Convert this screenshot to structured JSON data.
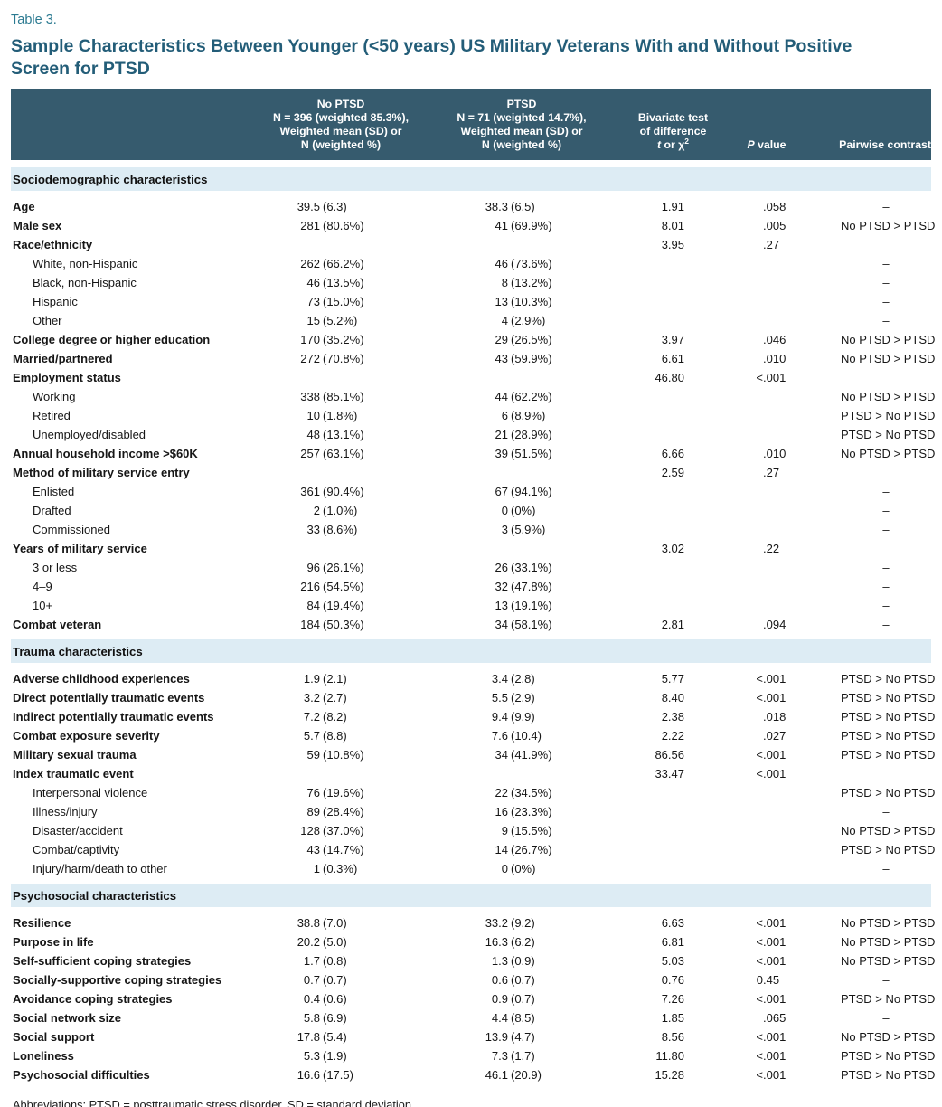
{
  "title": {
    "eyebrow": "Table 3.",
    "line1": "Sample Characteristics Between Younger (<50 years) US Military Veterans With and Without Positive",
    "line2": "Screen for PTSD"
  },
  "colors": {
    "header_bg": "#365b6e",
    "band_bg": "#ddecf4",
    "eyebrow_color": "#2b7a91",
    "heading_color": "#235d78",
    "bottom_rule": "#5d87a0"
  },
  "table": {
    "header": {
      "no_ptsd": [
        "No PTSD",
        "N = 396 (weighted 85.3%),",
        "Weighted mean (SD) or",
        "N (weighted %)"
      ],
      "ptsd": [
        "PTSD",
        "N = 71 (weighted 14.7%),",
        "Weighted mean (SD) or",
        "N (weighted %)"
      ],
      "test": {
        "line1": "Bivariate test",
        "line2": "of difference",
        "t": "t",
        "or": " or ",
        "chi": "χ",
        "sup": "2"
      },
      "p": {
        "italic": "P",
        "rest": " value"
      },
      "contrast": "Pairwise contrast"
    },
    "sections": [
      {
        "header": "Sociodemographic characteristics",
        "rows": [
          {
            "label": "Age",
            "indent": false,
            "no_ptsd": "39.5 (6.3)",
            "ptsd": "38.3 (6.5)",
            "test": "1.91",
            "p": ".058",
            "contrast": "–"
          },
          {
            "label": "Male sex",
            "indent": false,
            "no_ptsd": "281 (80.6%)",
            "ptsd": "41 (69.9%)",
            "test": "8.01",
            "p": ".005",
            "contrast": "No PTSD > PTSD"
          },
          {
            "label": "Race/ethnicity",
            "indent": false,
            "no_ptsd": "",
            "ptsd": "",
            "test": "3.95",
            "p": ".27",
            "contrast": ""
          },
          {
            "label": "White, non-Hispanic",
            "indent": true,
            "no_ptsd": "262 (66.2%)",
            "ptsd": "46 (73.6%)",
            "test": "",
            "p": "",
            "contrast": "–"
          },
          {
            "label": "Black, non-Hispanic",
            "indent": true,
            "no_ptsd": "46 (13.5%)",
            "ptsd": "8 (13.2%)",
            "test": "",
            "p": "",
            "contrast": "–"
          },
          {
            "label": "Hispanic",
            "indent": true,
            "no_ptsd": "73 (15.0%)",
            "ptsd": "13 (10.3%)",
            "test": "",
            "p": "",
            "contrast": "–"
          },
          {
            "label": "Other",
            "indent": true,
            "no_ptsd": "15 (5.2%)",
            "ptsd": "4 (2.9%)",
            "test": "",
            "p": "",
            "contrast": "–"
          },
          {
            "label": "College degree or higher education",
            "indent": false,
            "no_ptsd": "170 (35.2%)",
            "ptsd": "29 (26.5%)",
            "test": "3.97",
            "p": ".046",
            "contrast": "No PTSD > PTSD"
          },
          {
            "label": "Married/partnered",
            "indent": false,
            "no_ptsd": "272 (70.8%)",
            "ptsd": "43 (59.9%)",
            "test": "6.61",
            "p": ".010",
            "contrast": "No PTSD > PTSD"
          },
          {
            "label": "Employment status",
            "indent": false,
            "no_ptsd": "",
            "ptsd": "",
            "test": "46.80",
            "p": "<.001",
            "contrast": ""
          },
          {
            "label": "Working",
            "indent": true,
            "no_ptsd": "338 (85.1%)",
            "ptsd": "44 (62.2%)",
            "test": "",
            "p": "",
            "contrast": "No PTSD > PTSD"
          },
          {
            "label": "Retired",
            "indent": true,
            "no_ptsd": "10 (1.8%)",
            "ptsd": "6 (8.9%)",
            "test": "",
            "p": "",
            "contrast": "PTSD > No PTSD"
          },
          {
            "label": "Unemployed/disabled",
            "indent": true,
            "no_ptsd": "48 (13.1%)",
            "ptsd": "21 (28.9%)",
            "test": "",
            "p": "",
            "contrast": "PTSD > No PTSD"
          },
          {
            "label": "Annual household income >$60K",
            "indent": false,
            "no_ptsd": "257 (63.1%)",
            "ptsd": "39 (51.5%)",
            "test": "6.66",
            "p": ".010",
            "contrast": "No PTSD > PTSD"
          },
          {
            "label": "Method of military service entry",
            "indent": false,
            "no_ptsd": "",
            "ptsd": "",
            "test": "2.59",
            "p": ".27",
            "contrast": ""
          },
          {
            "label": "Enlisted",
            "indent": true,
            "no_ptsd": "361 (90.4%)",
            "ptsd": "67 (94.1%)",
            "test": "",
            "p": "",
            "contrast": "–"
          },
          {
            "label": "Drafted",
            "indent": true,
            "no_ptsd": "2 (1.0%)",
            "ptsd": "0 (0%)",
            "test": "",
            "p": "",
            "contrast": "–"
          },
          {
            "label": "Commissioned",
            "indent": true,
            "no_ptsd": "33 (8.6%)",
            "ptsd": "3 (5.9%)",
            "test": "",
            "p": "",
            "contrast": "–"
          },
          {
            "label": "Years of military service",
            "indent": false,
            "no_ptsd": "",
            "ptsd": "",
            "test": "3.02",
            "p": ".22",
            "contrast": ""
          },
          {
            "label": "3 or less",
            "indent": true,
            "no_ptsd": "96 (26.1%)",
            "ptsd": "26 (33.1%)",
            "test": "",
            "p": "",
            "contrast": "–"
          },
          {
            "label": "4–9",
            "indent": true,
            "no_ptsd": "216 (54.5%)",
            "ptsd": "32 (47.8%)",
            "test": "",
            "p": "",
            "contrast": "–"
          },
          {
            "label": "10+",
            "indent": true,
            "no_ptsd": "84 (19.4%)",
            "ptsd": "13 (19.1%)",
            "test": "",
            "p": "",
            "contrast": "–"
          },
          {
            "label": "Combat veteran",
            "indent": false,
            "no_ptsd": "184 (50.3%)",
            "ptsd": "34 (58.1%)",
            "test": "2.81",
            "p": ".094",
            "contrast": "–"
          }
        ]
      },
      {
        "header": "Trauma characteristics",
        "rows": [
          {
            "label": "Adverse childhood experiences",
            "indent": false,
            "no_ptsd": "1.9 (2.1)",
            "ptsd": "3.4 (2.8)",
            "test": "5.77",
            "p": "<.001",
            "contrast": "PTSD > No PTSD"
          },
          {
            "label": "Direct potentially traumatic events",
            "indent": false,
            "no_ptsd": "3.2 (2.7)",
            "ptsd": "5.5 (2.9)",
            "test": "8.40",
            "p": "<.001",
            "contrast": "PTSD > No PTSD"
          },
          {
            "label": "Indirect potentially traumatic events",
            "indent": false,
            "no_ptsd": "7.2 (8.2)",
            "ptsd": "9.4 (9.9)",
            "test": "2.38",
            "p": ".018",
            "contrast": "PTSD > No PTSD"
          },
          {
            "label": "Combat exposure severity",
            "indent": false,
            "no_ptsd": "5.7 (8.8)",
            "ptsd": "7.6 (10.4)",
            "test": "2.22",
            "p": ".027",
            "contrast": "PTSD > No PTSD"
          },
          {
            "label": "Military sexual trauma",
            "indent": false,
            "no_ptsd": "59 (10.8%)",
            "ptsd": "34 (41.9%)",
            "test": "86.56",
            "p": "<.001",
            "contrast": "PTSD > No PTSD"
          },
          {
            "label": "Index traumatic event",
            "indent": false,
            "no_ptsd": "",
            "ptsd": "",
            "test": "33.47",
            "p": "<.001",
            "contrast": ""
          },
          {
            "label": "Interpersonal violence",
            "indent": true,
            "no_ptsd": "76 (19.6%)",
            "ptsd": "22 (34.5%)",
            "test": "",
            "p": "",
            "contrast": "PTSD > No PTSD"
          },
          {
            "label": "Illness/injury",
            "indent": true,
            "no_ptsd": "89 (28.4%)",
            "ptsd": "16 (23.3%)",
            "test": "",
            "p": "",
            "contrast": "–"
          },
          {
            "label": "Disaster/accident",
            "indent": true,
            "no_ptsd": "128 (37.0%)",
            "ptsd": "9 (15.5%)",
            "test": "",
            "p": "",
            "contrast": "No PTSD > PTSD"
          },
          {
            "label": "Combat/captivity",
            "indent": true,
            "no_ptsd": "43 (14.7%)",
            "ptsd": "14 (26.7%)",
            "test": "",
            "p": "",
            "contrast": "PTSD > No PTSD"
          },
          {
            "label": "Injury/harm/death to other",
            "indent": true,
            "no_ptsd": "1 (0.3%)",
            "ptsd": "0 (0%)",
            "test": "",
            "p": "",
            "contrast": "–"
          }
        ]
      },
      {
        "header": "Psychosocial characteristics",
        "rows": [
          {
            "label": "Resilience",
            "indent": false,
            "no_ptsd": "38.8 (7.0)",
            "ptsd": "33.2 (9.2)",
            "test": "6.63",
            "p": "<.001",
            "contrast": "No PTSD > PTSD"
          },
          {
            "label": "Purpose in life",
            "indent": false,
            "no_ptsd": "20.2 (5.0)",
            "ptsd": "16.3 (6.2)",
            "test": "6.81",
            "p": "<.001",
            "contrast": "No PTSD > PTSD"
          },
          {
            "label": "Self-sufficient coping strategies",
            "indent": false,
            "no_ptsd": "1.7 (0.8)",
            "ptsd": "1.3 (0.9)",
            "test": "5.03",
            "p": "<.001",
            "contrast": "No PTSD > PTSD"
          },
          {
            "label": "Socially-supportive coping strategies",
            "indent": false,
            "no_ptsd": "0.7 (0.7)",
            "ptsd": "0.6 (0.7)",
            "test": "0.76",
            "p": "0.45",
            "contrast": "–"
          },
          {
            "label": "Avoidance coping strategies",
            "indent": false,
            "no_ptsd": "0.4 (0.6)",
            "ptsd": "0.9 (0.7)",
            "test": "7.26",
            "p": "<.001",
            "contrast": "PTSD > No PTSD"
          },
          {
            "label": "Social network size",
            "indent": false,
            "no_ptsd": "5.8 (6.9)",
            "ptsd": "4.4 (8.5)",
            "test": "1.85",
            "p": ".065",
            "contrast": "–"
          },
          {
            "label": "Social support",
            "indent": false,
            "no_ptsd": "17.8 (5.4)",
            "ptsd": "13.9 (4.7)",
            "test": "8.56",
            "p": "<.001",
            "contrast": "No PTSD > PTSD"
          },
          {
            "label": "Loneliness",
            "indent": false,
            "no_ptsd": "5.3 (1.9)",
            "ptsd": "7.3 (1.7)",
            "test": "11.80",
            "p": "<.001",
            "contrast": "PTSD > No PTSD"
          },
          {
            "label": "Psychosocial difficulties",
            "indent": false,
            "no_ptsd": "16.6 (17.5)",
            "ptsd": "46.1 (20.9)",
            "test": "15.28",
            "p": "<.001",
            "contrast": "PTSD > No PTSD"
          }
        ]
      }
    ]
  },
  "footnote": "Abbreviations: PTSD = posttraumatic stress disorder, SD = standard deviation."
}
